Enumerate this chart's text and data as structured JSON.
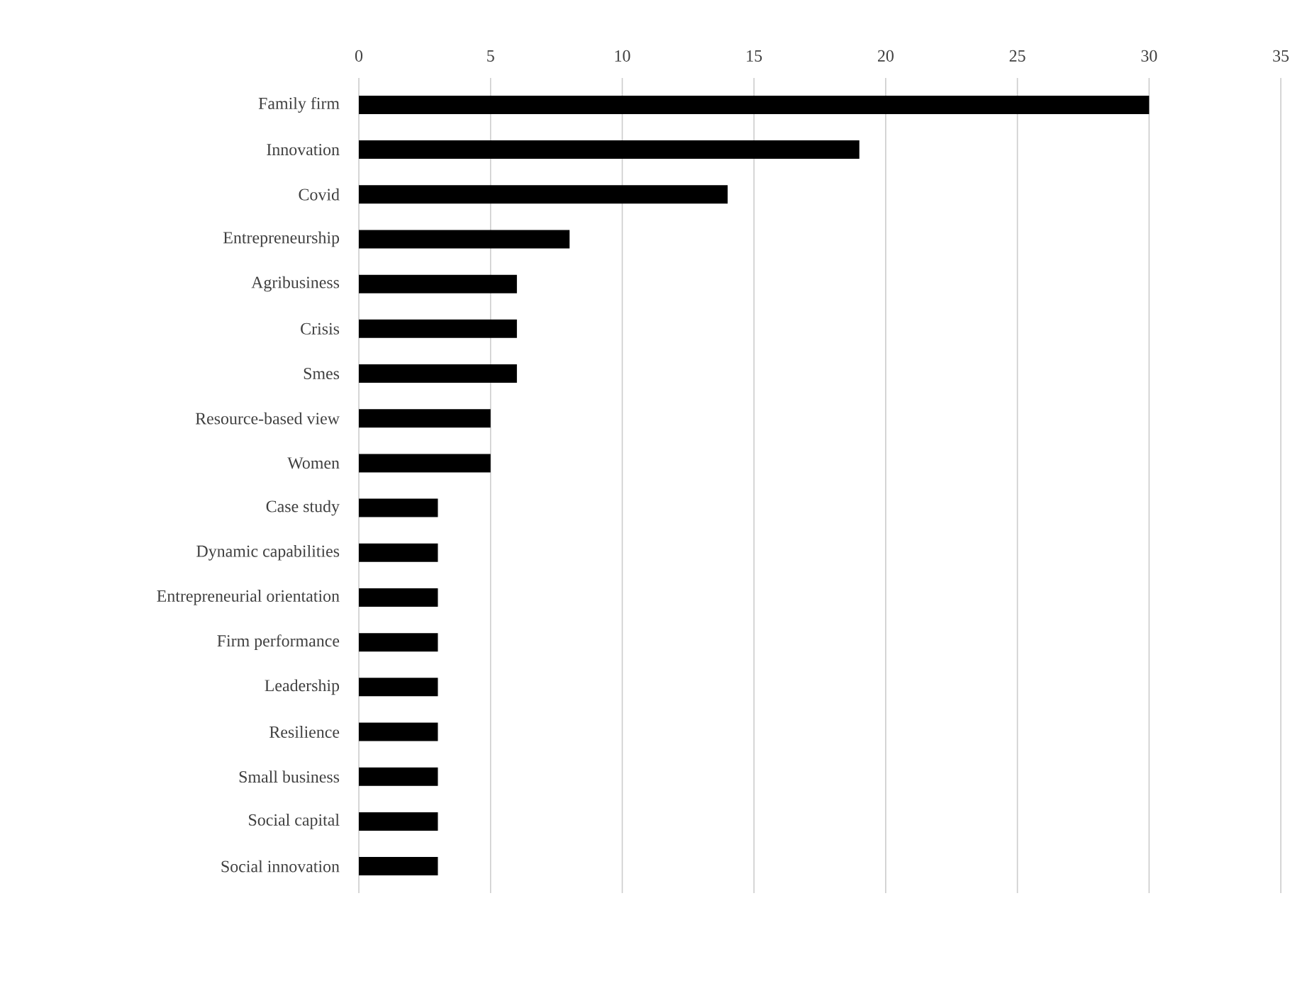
{
  "chart_data": {
    "type": "bar",
    "orientation": "horizontal",
    "categories": [
      "Family firm",
      "Innovation",
      "Covid",
      "Entrepreneurship",
      "Agribusiness",
      "Crisis",
      "Smes",
      "Resource-based view",
      "Women",
      "Case study",
      "Dynamic capabilities",
      "Entrepreneurial orientation",
      "Firm performance",
      "Leadership",
      "Resilience",
      "Small business",
      "Social capital",
      "Social innovation"
    ],
    "values": [
      30,
      19,
      14,
      8,
      6,
      6,
      6,
      5,
      5,
      3,
      3,
      3,
      3,
      3,
      3,
      3,
      3,
      3
    ],
    "color": "#000000",
    "xlim": [
      0,
      35
    ],
    "xticks": [
      0,
      5,
      10,
      15,
      20,
      25,
      30,
      35
    ],
    "grid": "x"
  }
}
